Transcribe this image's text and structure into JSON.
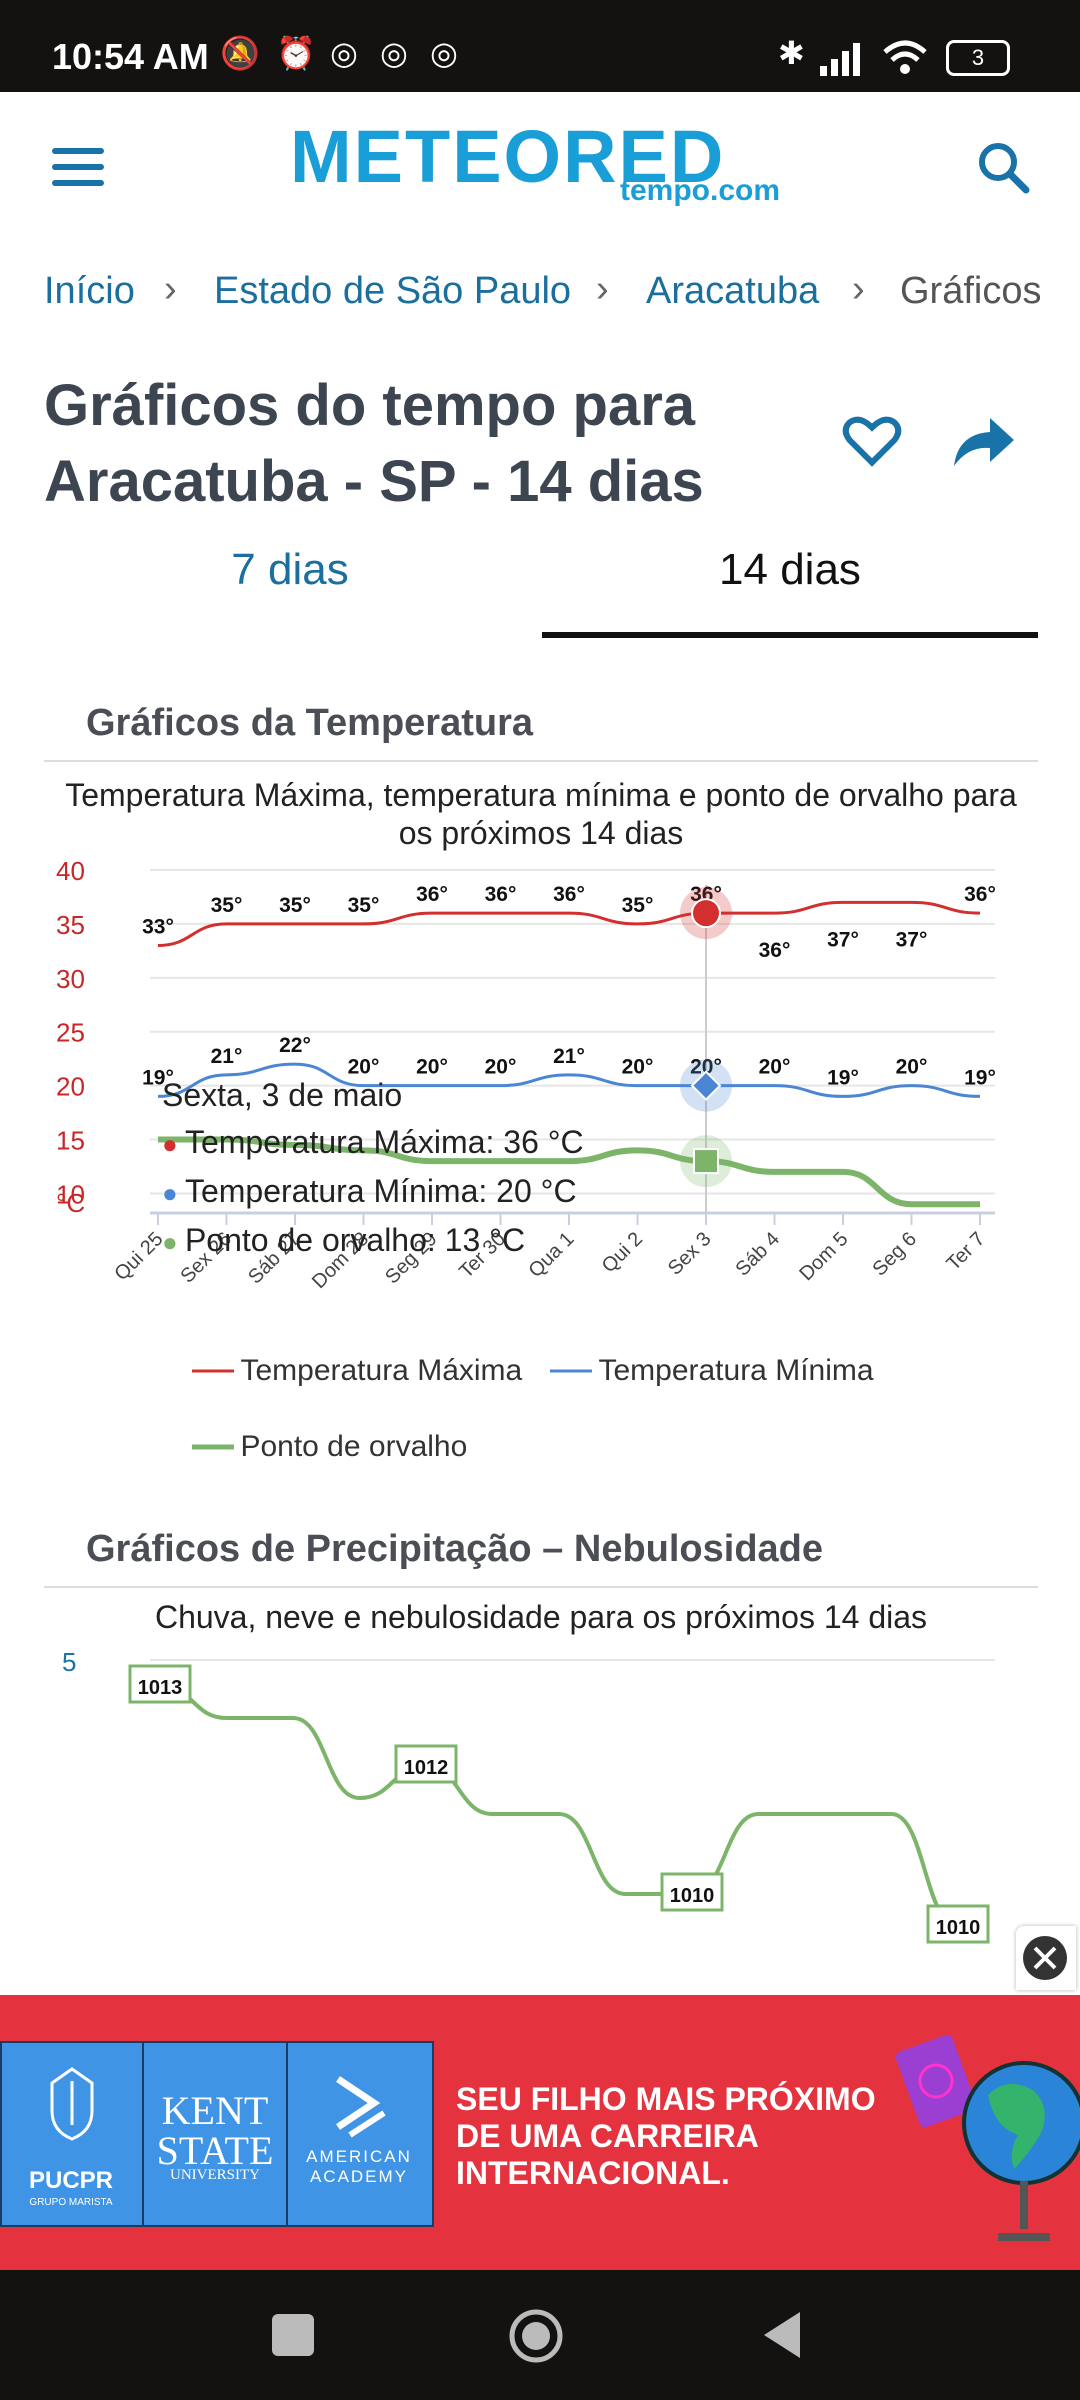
{
  "status_bar": {
    "time": "10:54 AM",
    "battery": "3"
  },
  "header": {
    "logo": "METEORED",
    "logo_sub": "tempo.com"
  },
  "breadcrumb": [
    "Início",
    "Estado de São Paulo",
    "Aracatuba",
    "Gráficos"
  ],
  "page_title": "Gráficos do tempo para Aracatuba - SP - 14 dias",
  "tabs": [
    {
      "label": "7 dias",
      "active": false
    },
    {
      "label": "14 dias",
      "active": true
    }
  ],
  "temperature_section": {
    "heading": "Gráficos da Temperatura",
    "chart_title": "Temperatura Máxima, temperatura mínima e ponto de orvalho para os próximos 14 dias",
    "tooltip": {
      "date": "Sexta, 3 de maio",
      "max": "Temperatura Máxima: 36 °C",
      "min": "Temperatura Mínima: 20 °C",
      "dew": "Ponto de orvalho: 13 °C"
    },
    "legend": [
      "Temperatura Máxima",
      "Temperatura Mínima",
      "Ponto de orvalho"
    ],
    "y_unit": "°C"
  },
  "precip_section": {
    "heading": "Gráficos de Precipitação – Nebulosidade",
    "chart_title": "Chuva, neve e nebulosidade para os próximos 14 dias",
    "y_tick": "5"
  },
  "ad": {
    "logos": [
      "PUCPR",
      "GRUPO MARISTA",
      "KENT STATE",
      "UNIVERSITY",
      "AMERICAN ACADEMY"
    ],
    "line1": "SEU FILHO MAIS PRÓXIMO",
    "line2_prefix": "DE UMA ",
    "line2_bold": "CARREIRA",
    "line3": "INTERNACIONAL."
  },
  "colors": {
    "max": "#d32f2f",
    "min": "#4a86d4",
    "dew": "#7cb56a",
    "link": "#1a6f9e",
    "ad_bg": "#e4323e"
  },
  "chart_data": [
    {
      "type": "line",
      "categories": [
        "Qui 25",
        "Sex 26",
        "Sáb 27",
        "Dom 28",
        "Seg 29",
        "Ter 30",
        "Qua 1",
        "Qui 2",
        "Sex 3",
        "Sáb 4",
        "Dom 5",
        "Seg 6",
        "Ter 7"
      ],
      "series": [
        {
          "name": "Temperatura Máxima",
          "values": [
            33,
            35,
            35,
            35,
            36,
            36,
            36,
            35,
            36,
            36,
            37,
            37,
            36
          ],
          "labels": [
            "33°",
            "35°",
            "35°",
            "35°",
            "36°",
            "36°",
            "36°",
            "35°",
            "36°",
            "36°",
            "37°",
            "37°",
            "36°"
          ]
        },
        {
          "name": "Temperatura Mínima",
          "values": [
            19,
            21,
            22,
            20,
            20,
            20,
            21,
            20,
            20,
            20,
            19,
            20,
            19
          ],
          "labels": [
            "19°",
            "21°",
            "22°",
            "20°",
            "20°",
            "20°",
            "21°",
            "20°",
            "20°",
            "20°",
            "19°",
            "20°",
            "19°"
          ]
        },
        {
          "name": "Ponto de orvalho",
          "values": [
            15,
            15,
            14.5,
            14,
            13,
            13,
            13,
            14,
            13,
            12,
            12,
            9,
            9
          ]
        }
      ],
      "yticks": [
        10,
        15,
        20,
        25,
        30,
        35,
        40
      ],
      "ylim": [
        8,
        40
      ],
      "selected_index": 8
    },
    {
      "type": "line",
      "series": [
        {
          "values": [
            1013,
            1012.6,
            1012.6,
            1011.6,
            1012,
            1011.4,
            1011.4,
            1010.4,
            1010.4,
            1011.4,
            1011.4,
            1011.4,
            1010
          ],
          "labels": {
            "0": "1013",
            "4": "1012",
            "8": "1010",
            "12": "1010"
          }
        }
      ],
      "yticks": [
        5
      ]
    }
  ]
}
